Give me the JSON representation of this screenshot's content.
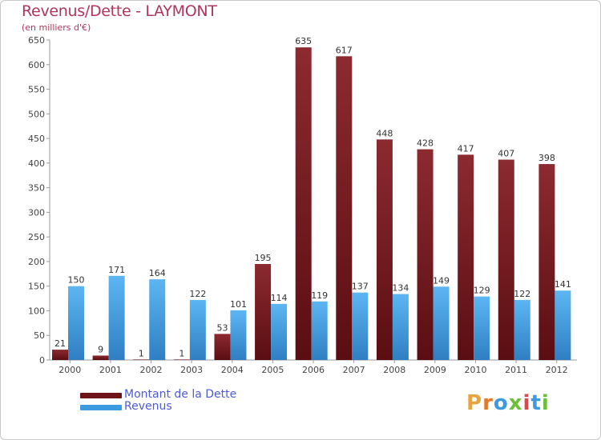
{
  "chart_data": {
    "type": "bar",
    "title": "Revenus/Dette - LAYMONT",
    "subtitle": "(en milliers d'€)",
    "categories": [
      "2000",
      "2001",
      "2002",
      "2003",
      "2004",
      "2005",
      "2006",
      "2007",
      "2008",
      "2009",
      "2010",
      "2011",
      "2012"
    ],
    "series": [
      {
        "name": "Montant de la Dette",
        "color": "#7a1a1f",
        "values": [
          21,
          9,
          1,
          1,
          53,
          195,
          635,
          617,
          448,
          428,
          417,
          407,
          398
        ]
      },
      {
        "name": "Revenus",
        "color": "#3a9be0",
        "values": [
          150,
          171,
          164,
          122,
          101,
          114,
          119,
          137,
          134,
          149,
          129,
          122,
          141
        ]
      }
    ],
    "ylim": [
      0,
      650
    ],
    "yticks": [
      0,
      50,
      100,
      150,
      200,
      250,
      300,
      350,
      400,
      450,
      500,
      550,
      600,
      650
    ],
    "grid": false,
    "legend_position": "bottom-left"
  },
  "logo": {
    "letters": [
      "P",
      "r",
      "o",
      "x",
      "i",
      "t",
      "i"
    ],
    "colors": [
      "#e8a33d",
      "#e07b2a",
      "#3a9be0",
      "#6bbf3a",
      "#d94b4b",
      "#3a9be0",
      "#6bbf3a"
    ]
  }
}
